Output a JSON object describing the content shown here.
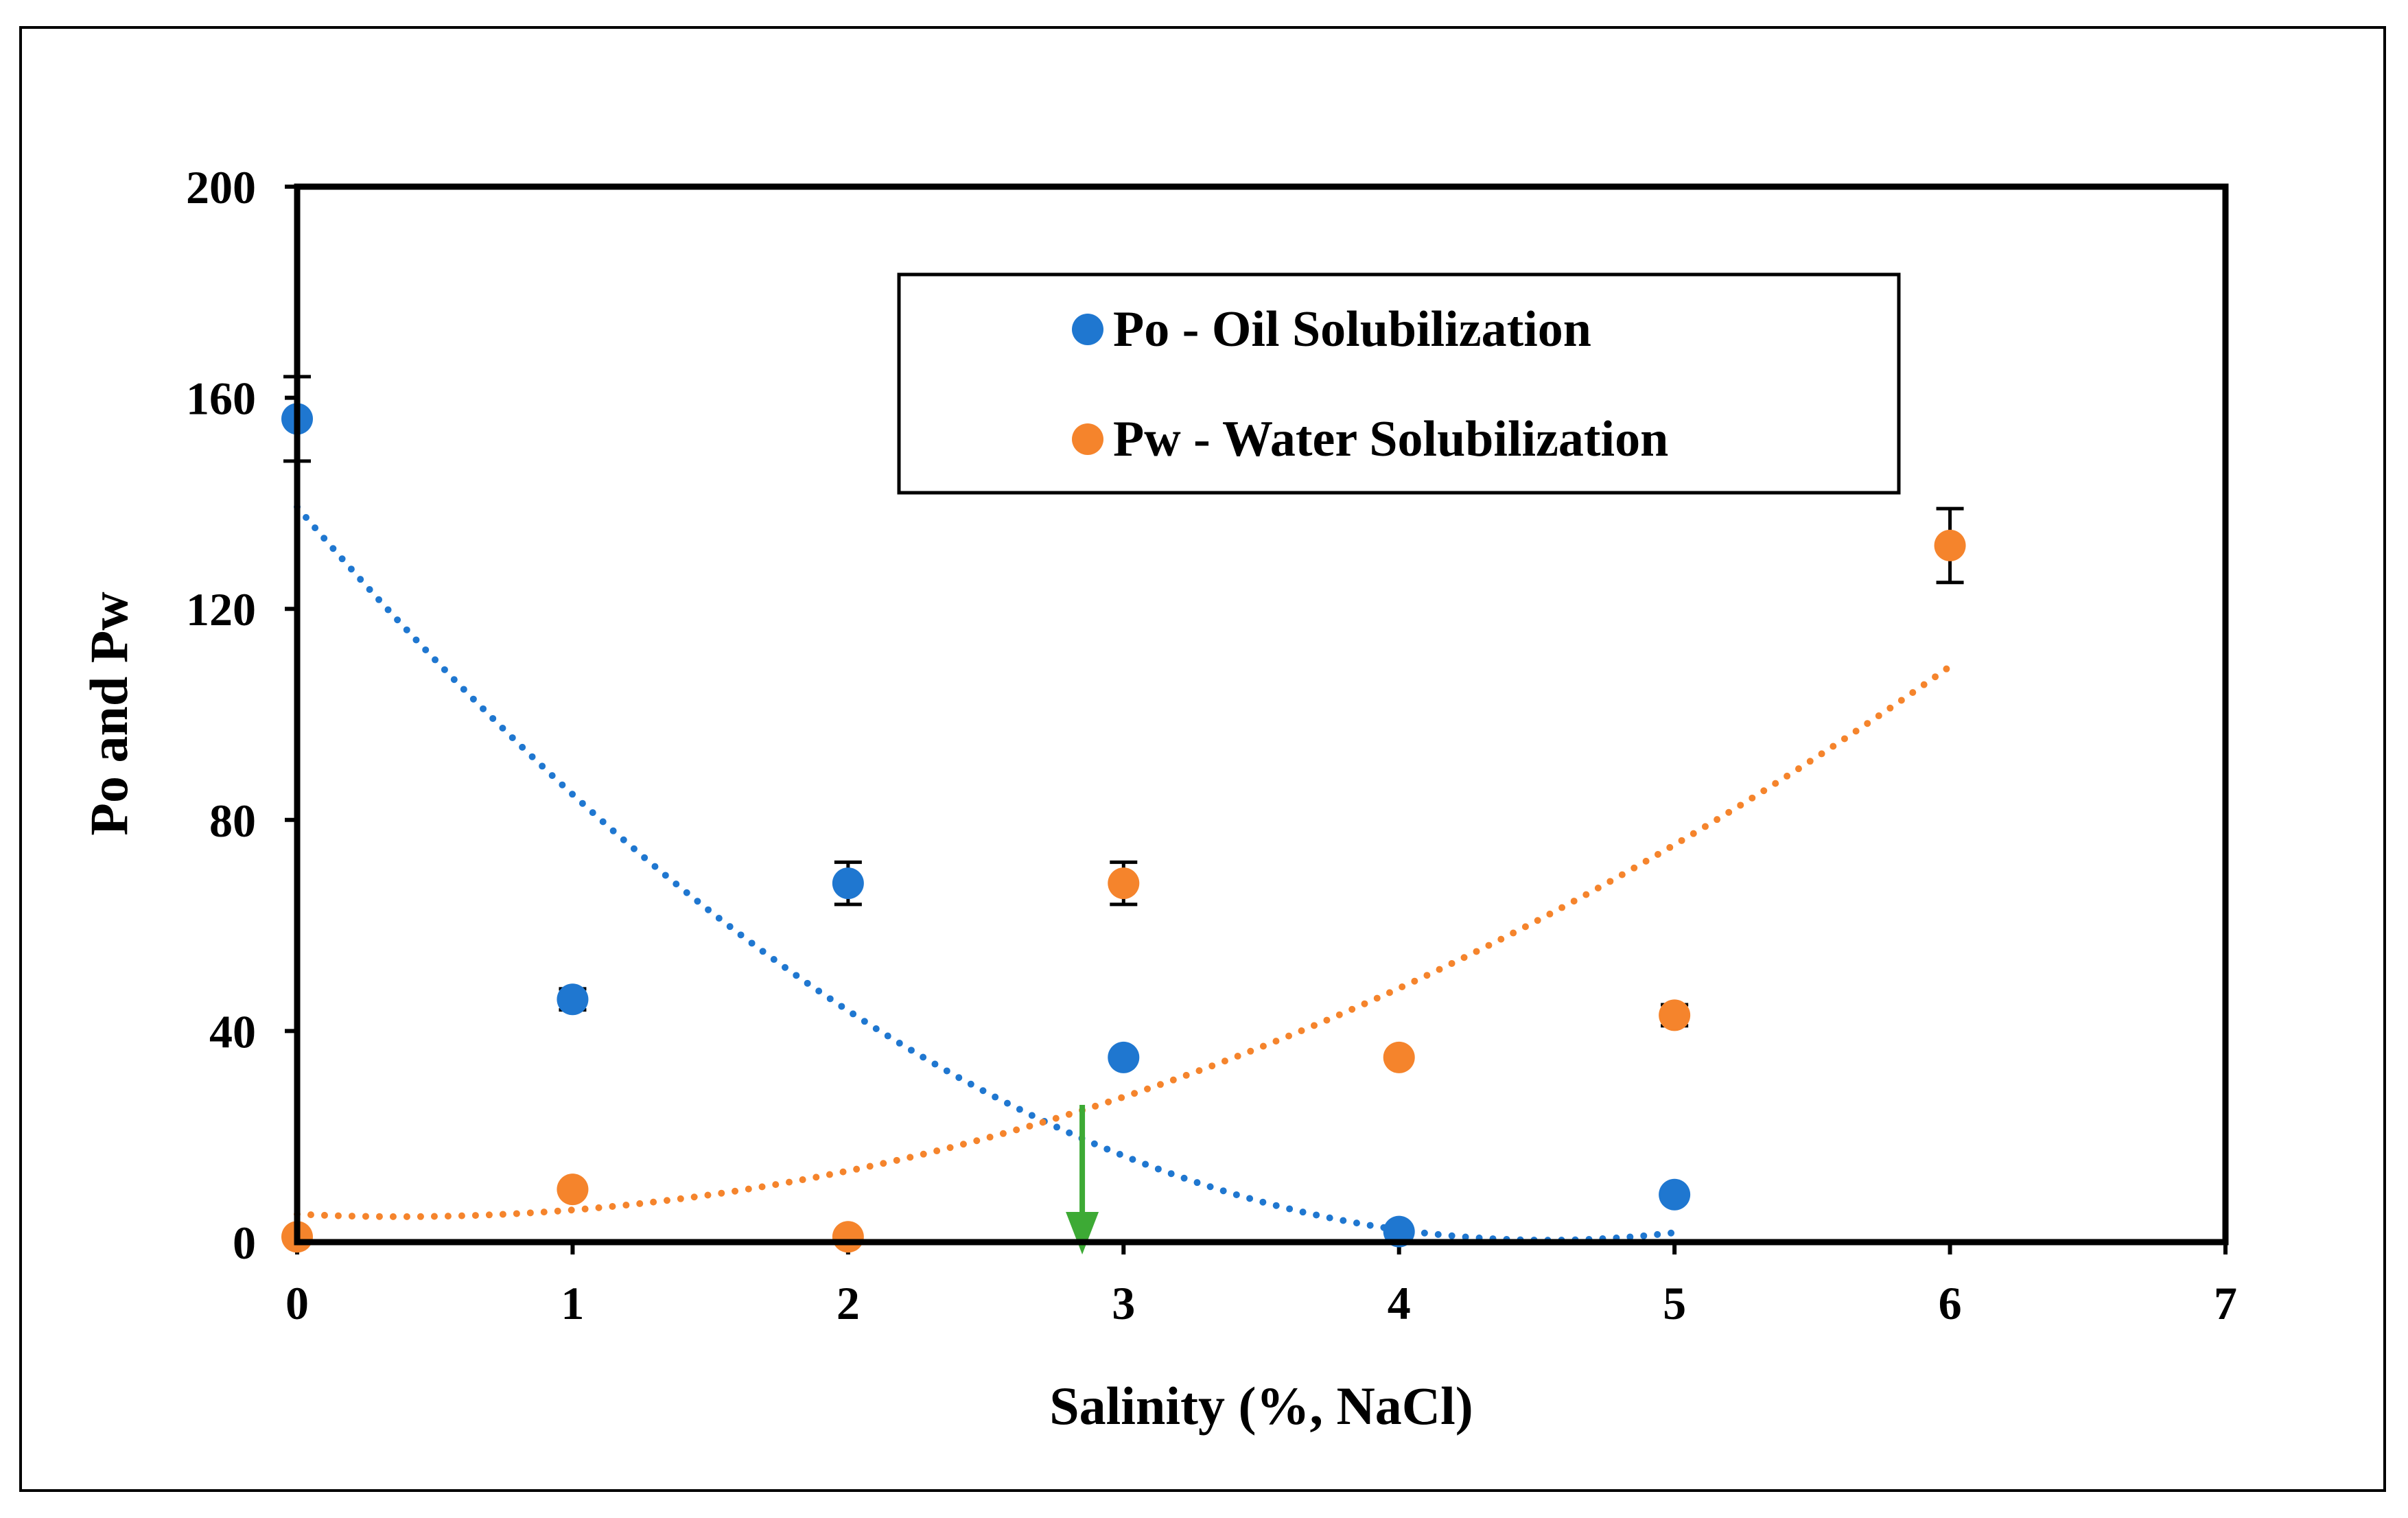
{
  "chart_data": {
    "type": "scatter",
    "title": "",
    "xlabel": "Salinity (%, NaCl)",
    "ylabel": "Po and Pw",
    "xlim": [
      0,
      7
    ],
    "ylim": [
      0,
      200
    ],
    "xticks": [
      0,
      1,
      2,
      3,
      4,
      5,
      6,
      7
    ],
    "yticks": [
      0,
      40,
      80,
      120,
      160,
      200
    ],
    "legend_position": "top-center",
    "series": [
      {
        "name": "Po - Oil Solubilization",
        "color": "#1F77D0",
        "x": [
          0,
          1,
          2,
          3,
          4,
          5
        ],
        "y": [
          156,
          46,
          68,
          35,
          2,
          9
        ],
        "error": [
          8,
          2,
          4,
          1,
          0,
          0
        ],
        "trend": {
          "type": "polynomial",
          "x_range": [
            0,
            5
          ],
          "coefficients": [
            139.3,
            -61.2,
            6.74
          ]
        }
      },
      {
        "name": "Pw - Water Solubilization",
        "color": "#F5842C",
        "x": [
          0,
          1,
          2,
          3,
          4,
          5,
          6
        ],
        "y": [
          1,
          10,
          1,
          68,
          35,
          43,
          132
        ],
        "error": [
          0,
          1,
          0,
          4,
          1,
          2,
          7
        ],
        "trend": {
          "type": "polynomial",
          "x_range": [
            0,
            6
          ],
          "coefficients": [
            5.3,
            -2.5,
            3.3
          ]
        }
      }
    ],
    "annotations": [
      {
        "type": "arrow",
        "color": "#3DAA35",
        "x": 2.85,
        "y_from": 26,
        "y_to": 0,
        "meaning": "intersection of trend lines (optimal salinity)"
      }
    ]
  }
}
